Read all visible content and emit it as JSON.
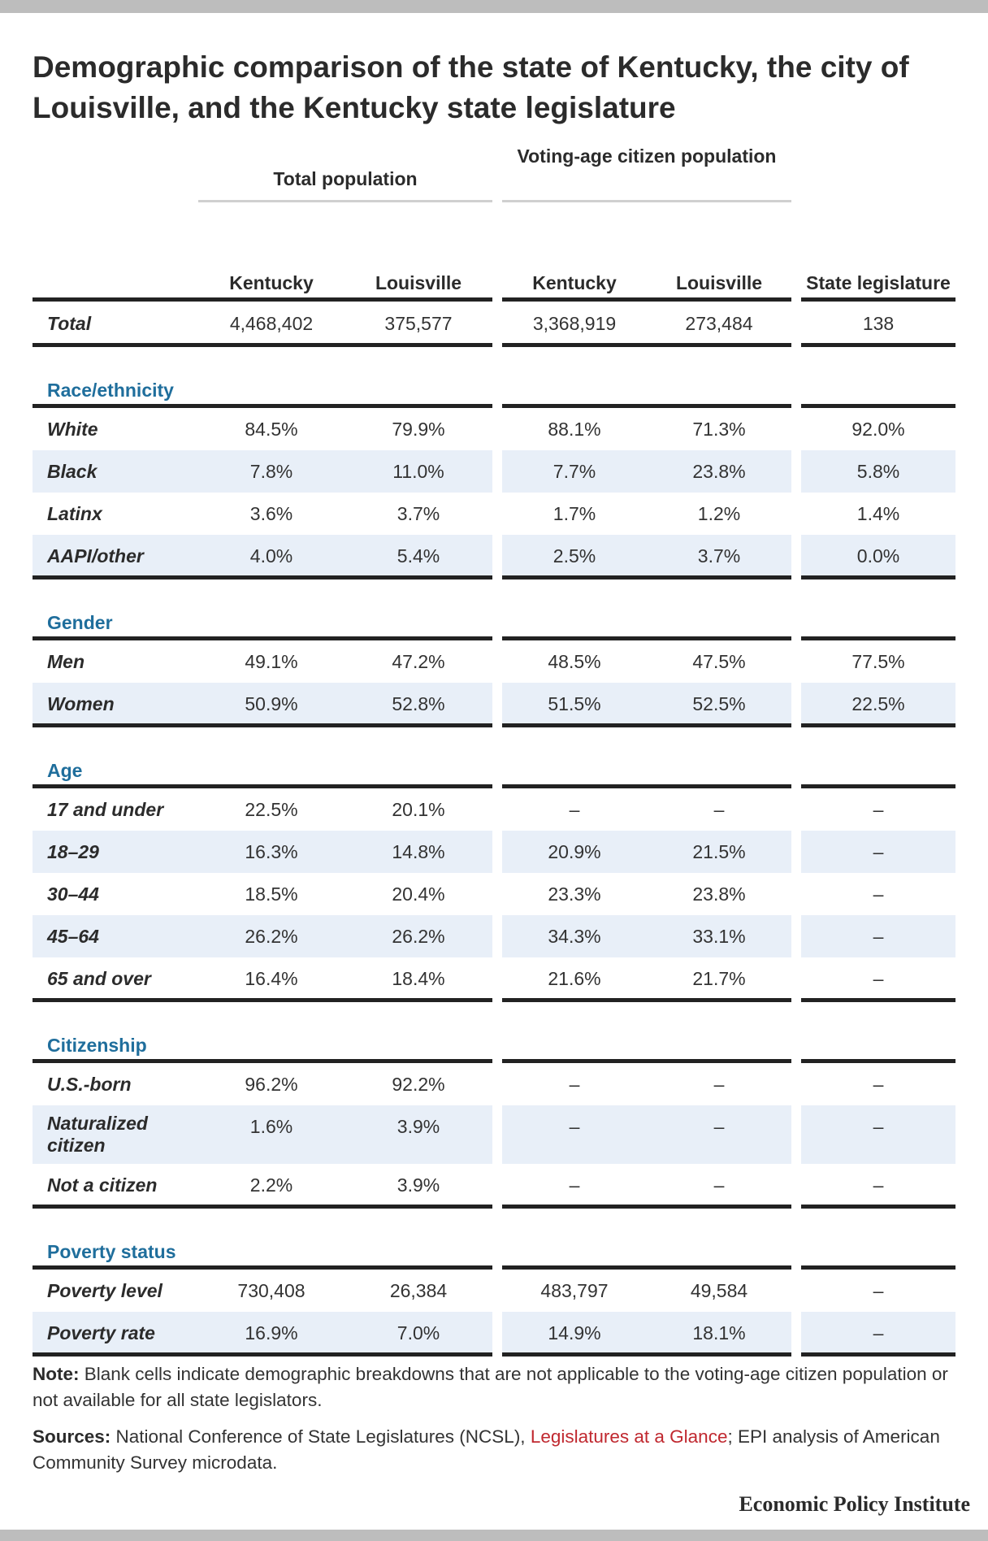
{
  "title": "Demographic comparison of the state of Kentucky, the city of Louisville, and the Kentucky state legislature",
  "groups": {
    "total_population": "Total population",
    "voting_age": "Voting-age citizen population"
  },
  "columns": [
    "Kentucky",
    "Louisville",
    "Kentucky",
    "Louisville",
    "State legislature"
  ],
  "total_row": {
    "label": "Total",
    "values": [
      "4,468,402",
      "375,577",
      "3,368,919",
      "273,484",
      "138"
    ]
  },
  "sections": [
    {
      "title": "Race/ethnicity",
      "rows": [
        {
          "label": "White",
          "values": [
            "84.5%",
            "79.9%",
            "88.1%",
            "71.3%",
            "92.0%"
          ]
        },
        {
          "label": "Black",
          "values": [
            "7.8%",
            "11.0%",
            "7.7%",
            "23.8%",
            "5.8%"
          ]
        },
        {
          "label": "Latinx",
          "values": [
            "3.6%",
            "3.7%",
            "1.7%",
            "1.2%",
            "1.4%"
          ]
        },
        {
          "label": "AAPI/other",
          "values": [
            "4.0%",
            "5.4%",
            "2.5%",
            "3.7%",
            "0.0%"
          ]
        }
      ]
    },
    {
      "title": "Gender",
      "rows": [
        {
          "label": "Men",
          "values": [
            "49.1%",
            "47.2%",
            "48.5%",
            "47.5%",
            "77.5%"
          ]
        },
        {
          "label": "Women",
          "values": [
            "50.9%",
            "52.8%",
            "51.5%",
            "52.5%",
            "22.5%"
          ]
        }
      ]
    },
    {
      "title": "Age",
      "rows": [
        {
          "label": "17 and under",
          "values": [
            "22.5%",
            "20.1%",
            "–",
            "–",
            "–"
          ]
        },
        {
          "label": "18–29",
          "values": [
            "16.3%",
            "14.8%",
            "20.9%",
            "21.5%",
            "–"
          ]
        },
        {
          "label": "30–44",
          "values": [
            "18.5%",
            "20.4%",
            "23.3%",
            "23.8%",
            "–"
          ]
        },
        {
          "label": "45–64",
          "values": [
            "26.2%",
            "26.2%",
            "34.3%",
            "33.1%",
            "–"
          ]
        },
        {
          "label": "65 and over",
          "values": [
            "16.4%",
            "18.4%",
            "21.6%",
            "21.7%",
            "–"
          ]
        }
      ]
    },
    {
      "title": "Citizenship",
      "rows": [
        {
          "label": "U.S.-born",
          "values": [
            "96.2%",
            "92.2%",
            "–",
            "–",
            "–"
          ]
        },
        {
          "label": "Naturalized citizen",
          "values": [
            "1.6%",
            "3.9%",
            "–",
            "–",
            "–"
          ],
          "tall": true
        },
        {
          "label": "Not a citizen",
          "values": [
            "2.2%",
            "3.9%",
            "–",
            "–",
            "–"
          ]
        }
      ]
    },
    {
      "title": "Poverty status",
      "rows": [
        {
          "label": "Poverty level",
          "values": [
            "730,408",
            "26,384",
            "483,797",
            "49,584",
            "–"
          ]
        },
        {
          "label": "Poverty rate",
          "values": [
            "16.9%",
            "7.0%",
            "14.9%",
            "18.1%",
            "–"
          ]
        }
      ]
    }
  ],
  "note": {
    "label": "Note:",
    "text": " Blank cells indicate demographic breakdowns that are not applicable to the voting-age citizen population or not available for all state legislators."
  },
  "sources": {
    "label": "Sources:",
    "text_before": " National Conference of State Legislatures (NCSL), ",
    "link": "Legislatures at a Glance",
    "text_after": "; EPI analysis of American Community Survey microdata."
  },
  "publisher": "Economic Policy Institute",
  "colors": {
    "section_title": "#1f6e9c",
    "shade": "#e8eff8",
    "link": "#c0282f"
  }
}
